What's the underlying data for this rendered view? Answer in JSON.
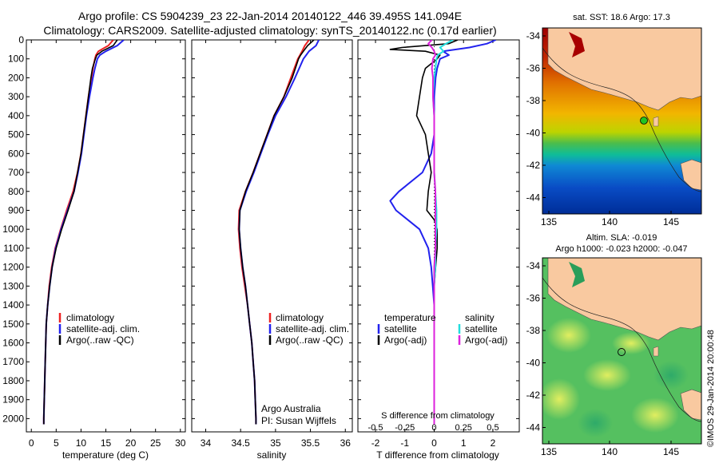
{
  "header": {
    "line1": "Argo profile: CS 5904239_23 22-Jan-2014 20140122_446 39.495S 141.094E",
    "line2": "Climatology: CARS2009. Satellite-adjusted climatology: synTS_20140122.nc (0.17d earlier)"
  },
  "colors": {
    "climatology": "#ee2222",
    "satellite": "#2222ee",
    "argo": "#000000",
    "sal_satellite": "#22dddd",
    "sal_argo": "#dd22dd",
    "land": "#f9c9a0"
  },
  "chart_data": [
    {
      "type": "line",
      "panel": "temperature",
      "xlabel": "temperature (deg C)",
      "ylabel": "",
      "xlim": [
        -1,
        31
      ],
      "ylim": [
        2070,
        0
      ],
      "xticks": [
        "0",
        "5",
        "10",
        "15",
        "20",
        "25",
        "30"
      ],
      "yticks": [
        "0",
        "100",
        "200",
        "300",
        "400",
        "500",
        "600",
        "700",
        "800",
        "900",
        "1000",
        "1100",
        "1200",
        "1300",
        "1400",
        "1500",
        "1600",
        "1700",
        "1800",
        "1900",
        "2000"
      ],
      "legend": [
        "climatology",
        "satellite-adj. clim.",
        "Argo(..raw -QC)"
      ],
      "legend_position": "lower-center",
      "series": [
        {
          "name": "climatology",
          "depth": [
            0,
            30,
            60,
            80,
            100,
            150,
            200,
            300,
            400,
            500,
            600,
            700,
            800,
            900,
            1000,
            1100,
            1200,
            1300,
            1400,
            1500,
            1700,
            2000,
            2030
          ],
          "values": [
            16.5,
            15.5,
            13.5,
            13.0,
            12.8,
            12.4,
            12.1,
            11.5,
            11.0,
            10.5,
            10.0,
            9.3,
            8.4,
            7.1,
            5.9,
            4.8,
            4.1,
            3.6,
            3.3,
            3.0,
            2.8,
            2.5,
            2.5
          ]
        },
        {
          "name": "satellite-adj. clim.",
          "depth": [
            0,
            30,
            60,
            80,
            100,
            150,
            200,
            300,
            400,
            500,
            600,
            700,
            800,
            900,
            1000,
            1100,
            1200,
            1300,
            1400,
            1500,
            1700,
            2000,
            2030
          ],
          "values": [
            18.6,
            17.3,
            15.0,
            13.8,
            13.3,
            12.8,
            12.4,
            11.7,
            11.1,
            10.6,
            10.1,
            9.4,
            8.6,
            7.3,
            6.0,
            4.9,
            4.2,
            3.7,
            3.3,
            3.0,
            2.8,
            2.5,
            2.5
          ]
        },
        {
          "name": "Argo(..raw -QC)",
          "depth": [
            0,
            30,
            60,
            80,
            100,
            150,
            200,
            300,
            400,
            500,
            600,
            700,
            800,
            900,
            1000,
            1100,
            1200,
            1300,
            1400,
            1500,
            1700,
            2000,
            2030
          ],
          "values": [
            17.3,
            16.5,
            14.2,
            13.2,
            12.9,
            12.3,
            12.0,
            11.5,
            11.0,
            10.5,
            10.0,
            9.3,
            8.6,
            7.4,
            6.1,
            5.0,
            4.2,
            3.7,
            3.3,
            3.0,
            2.8,
            2.5,
            2.5
          ]
        }
      ]
    },
    {
      "type": "line",
      "panel": "salinity",
      "xlabel": "salinity",
      "ylabel": "",
      "xlim": [
        33.8,
        36.1
      ],
      "ylim": [
        2070,
        0
      ],
      "xticks": [
        "34",
        "34.5",
        "35",
        "35.5",
        "36"
      ],
      "legend": [
        "climatology",
        "satellite-adj. clim.",
        "Argo(..raw -QC)"
      ],
      "legend_position": "lower-center",
      "annotations": [
        "Argo Australia",
        "PI: Susan Wijffels"
      ],
      "series": [
        {
          "name": "climatology",
          "depth": [
            0,
            30,
            60,
            80,
            100,
            200,
            300,
            400,
            500,
            600,
            700,
            800,
            900,
            1000,
            1100,
            1200,
            1300,
            1400,
            1500,
            1600,
            1700,
            1800,
            1900,
            2000,
            2030
          ],
          "values": [
            35.48,
            35.42,
            35.38,
            35.35,
            35.32,
            35.22,
            35.12,
            34.98,
            34.88,
            34.78,
            34.68,
            34.57,
            34.48,
            34.47,
            34.49,
            34.52,
            34.56,
            34.6,
            34.63,
            34.66,
            34.68,
            34.7,
            34.71,
            34.72,
            34.72
          ]
        },
        {
          "name": "satellite-adj. clim.",
          "depth": [
            0,
            30,
            60,
            80,
            100,
            200,
            300,
            400,
            500,
            600,
            700,
            800,
            900,
            1000,
            1100,
            1200,
            1300,
            1400,
            1500,
            1600,
            1700,
            1800,
            1900,
            2000,
            2030
          ],
          "values": [
            35.62,
            35.58,
            35.48,
            35.44,
            35.4,
            35.28,
            35.15,
            35.0,
            34.89,
            34.79,
            34.69,
            34.58,
            34.49,
            34.48,
            34.5,
            34.53,
            34.57,
            34.6,
            34.63,
            34.66,
            34.68,
            34.7,
            34.71,
            34.72,
            34.72
          ]
        },
        {
          "name": "Argo(..raw -QC)",
          "depth": [
            0,
            30,
            60,
            80,
            100,
            200,
            300,
            400,
            500,
            600,
            700,
            800,
            900,
            1000,
            1100,
            1200,
            1300,
            1400,
            1500,
            1600,
            1700,
            1800,
            1900,
            2000,
            2030
          ],
          "values": [
            35.55,
            35.46,
            35.4,
            35.36,
            35.33,
            35.24,
            35.12,
            34.98,
            34.88,
            34.78,
            34.68,
            34.57,
            34.49,
            34.48,
            34.5,
            34.53,
            34.57,
            34.6,
            34.63,
            34.66,
            34.68,
            34.7,
            34.71,
            34.72,
            34.72
          ]
        }
      ]
    },
    {
      "type": "line",
      "panel": "difference",
      "xlabel": "T difference from climatology",
      "top_xlabel": "S difference from climatology",
      "xlim": [
        -2.6,
        2.9
      ],
      "s_xlim": [
        -0.65,
        0.725
      ],
      "ylim": [
        2070,
        0
      ],
      "xticks": [
        "-2",
        "-1",
        "0",
        "1",
        "2"
      ],
      "s_xticks": [
        "-0.5",
        "-0.25",
        "0",
        "0.25",
        "0.5"
      ],
      "legend_temperature_title": "temperature",
      "legend_salinity_title": "salinity",
      "legend_temperature": [
        "satellite",
        "Argo(-adj)"
      ],
      "legend_salinity": [
        "satellite",
        "Argo(-adj)"
      ],
      "series": [
        {
          "name": "T satellite",
          "depth": [
            0,
            20,
            40,
            60,
            80,
            100,
            150,
            200,
            300,
            400,
            500,
            600,
            700,
            800,
            850,
            900,
            950,
            1000,
            1100,
            1200,
            1300,
            1400,
            1500,
            1700,
            2000,
            2030
          ],
          "values": [
            2.1,
            1.8,
            1.2,
            0.3,
            0.5,
            0.2,
            0.1,
            0.05,
            0,
            0,
            0,
            -0.1,
            -0.4,
            -1.2,
            -1.5,
            -1.3,
            -0.9,
            -0.5,
            -0.2,
            -0.1,
            -0.05,
            0,
            0,
            0,
            0,
            0
          ]
        },
        {
          "name": "T Argo(-adj)",
          "depth": [
            0,
            20,
            40,
            50,
            60,
            80,
            100,
            150,
            200,
            300,
            400,
            500,
            600,
            700,
            800,
            900,
            950,
            1000,
            1100,
            1200,
            1300,
            1400,
            1500,
            1700,
            2000,
            2030
          ],
          "values": [
            0.8,
            0.5,
            -1.1,
            -1.5,
            -0.3,
            0.2,
            0.1,
            -0.3,
            -0.4,
            -0.5,
            -0.6,
            -0.3,
            -0.2,
            -0.1,
            -0.2,
            -0.25,
            0,
            0.1,
            0.1,
            0.05,
            0,
            0,
            0,
            0,
            0,
            0
          ]
        },
        {
          "name": "S satellite",
          "depth": [
            0,
            20,
            40,
            60,
            80,
            100,
            150,
            200,
            300,
            400,
            500,
            600,
            700,
            800,
            900,
            1000,
            1100,
            1200,
            1300,
            1400,
            1500,
            1700,
            2000,
            2030
          ],
          "values": [
            0.16,
            0.1,
            0.05,
            0.08,
            0.03,
            0.02,
            0.01,
            0,
            -0.01,
            0,
            0,
            0,
            0,
            0.01,
            0.02,
            0.02,
            0.01,
            0.01,
            0,
            0,
            0,
            0,
            0,
            0
          ]
        },
        {
          "name": "S Argo(-adj)",
          "depth": [
            0,
            20,
            40,
            60,
            80,
            100,
            150,
            200,
            300,
            400,
            500,
            600,
            700,
            800,
            900,
            1000,
            1100,
            1200,
            1300,
            1400,
            1500,
            1700,
            2000,
            2030
          ],
          "values": [
            -0.02,
            -0.05,
            -0.02,
            0.0,
            0.01,
            -0.01,
            -0.02,
            -0.01,
            -0.01,
            0,
            0,
            0,
            0,
            0.01,
            0.01,
            0.01,
            0.01,
            0,
            0,
            0,
            0,
            0,
            0,
            0
          ]
        }
      ]
    }
  ],
  "maps": {
    "sst": {
      "title": "sat. SST: 18.6 Argo: 17.3",
      "xticks": [
        "135",
        "140",
        "145"
      ],
      "yticks": [
        "-34",
        "-36",
        "-38",
        "-40",
        "-42",
        "-44"
      ]
    },
    "sla": {
      "title1": "Altim. SLA: -0.019",
      "title2": "Argo h1000: -0.023 h2000: -0.047",
      "xticks": [
        "135",
        "140",
        "145"
      ],
      "yticks": [
        "-34",
        "-36",
        "-38",
        "-40",
        "-42",
        "-44"
      ]
    }
  },
  "footer_vertical": "©IMOS 29-Jan-2014 20:00:48"
}
